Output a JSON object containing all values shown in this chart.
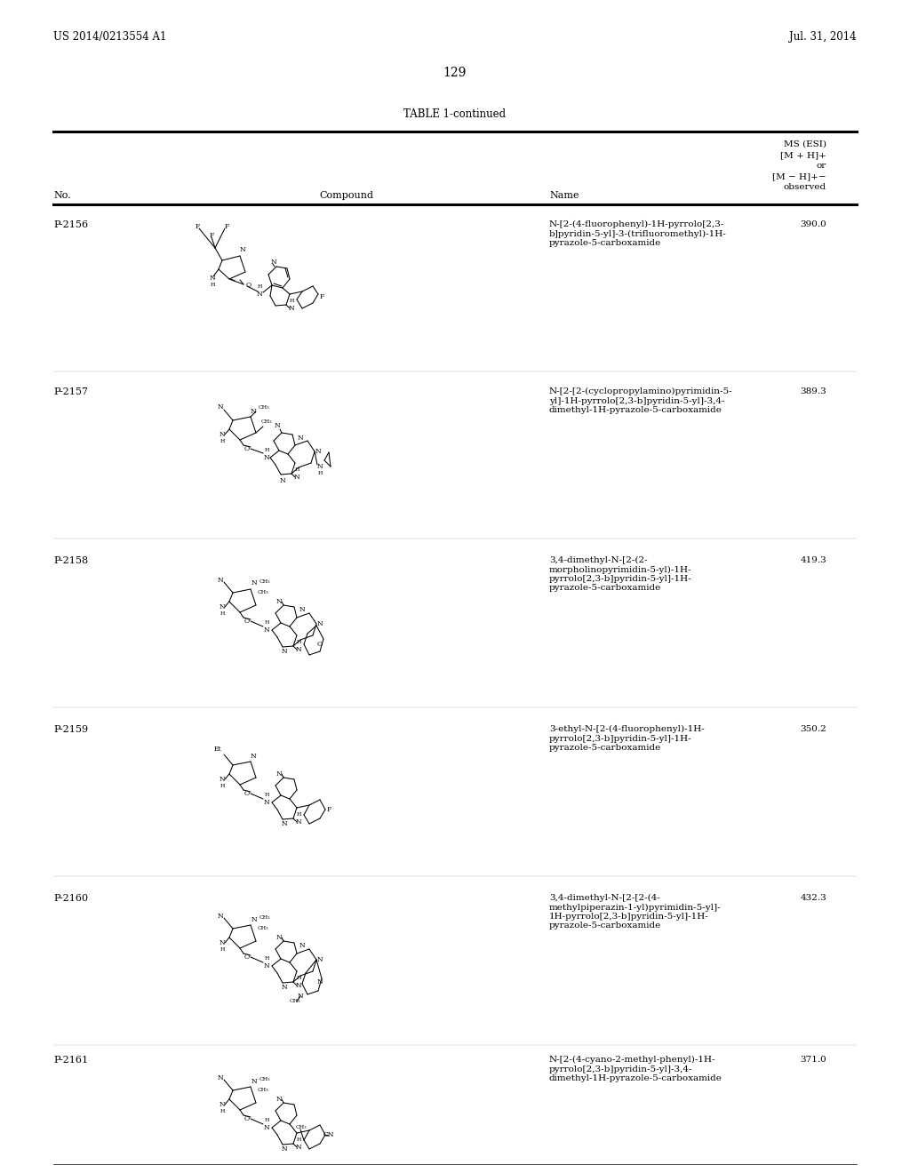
{
  "page_number": "129",
  "left_header": "US 2014/0213554 A1",
  "right_header": "Jul. 31, 2014",
  "table_title": "TABLE 1-continued",
  "col_headers": [
    "No.",
    "Compound",
    "Name",
    "MS (ESI)\n[M + H]+\nor\n[M − H]+−\nobserved"
  ],
  "background_color": "#ffffff",
  "text_color": "#000000",
  "rows": [
    {
      "no": "P-2156",
      "name": "N-[2-(4-fluorophenyl)-1H-pyrrolo[2,3-\nb]pyridin-5-yl]-3-(trifluoromethyl)-1H-\npyrazole-5-carboxamide",
      "ms": "390.0"
    },
    {
      "no": "P-2157",
      "name": "N-[2-[2-(cyclopropylamino)pyrimidin-5-\nyl]-1H-pyrrolo[2,3-b]pyridin-5-yl]-3,4-\ndimethyl-1H-pyrazole-5-carboxamide",
      "ms": "389.3"
    },
    {
      "no": "P-2158",
      "name": "3,4-dimethyl-N-[2-(2-\nmorpholinopyrimidin-5-yl)-1H-\npyrrolo[2,3-b]pyridin-5-yl]-1H-\npyrazole-5-carboxamide",
      "ms": "419.3"
    },
    {
      "no": "P-2159",
      "name": "3-ethyl-N-[2-(4-fluorophenyl)-1H-\npyrrolo[2,3-b]pyridin-5-yl]-1H-\npyrazole-5-carboxamide",
      "ms": "350.2"
    },
    {
      "no": "P-2160",
      "name": "3,4-dimethyl-N-[2-[2-(4-\nmethylpiperazin-1-yl)pyrimidin-5-yl]-\n1H-pyrrolo[2,3-b]pyridin-5-yl]-1H-\npyrazole-5-carboxamide",
      "ms": "432.3"
    },
    {
      "no": "P-2161",
      "name": "N-[2-(4-cyano-2-methyl-phenyl)-1H-\npyrrolo[2,3-b]pyridin-5-yl]-3,4-\ndimethyl-1H-pyrazole-5-carboxamide",
      "ms": "371.0"
    }
  ]
}
